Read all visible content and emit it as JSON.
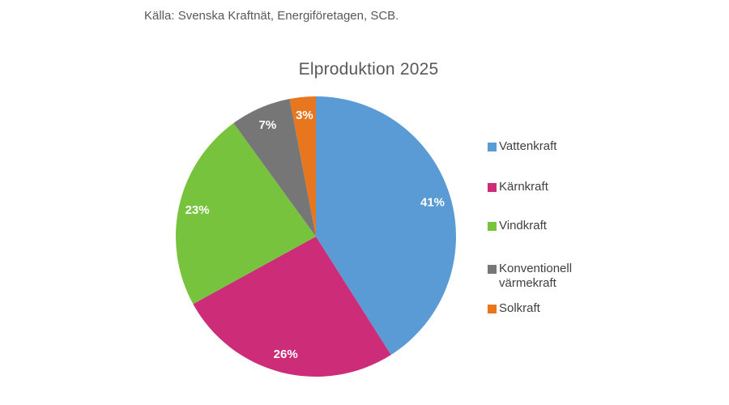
{
  "page": {
    "background": "#FFFFFF",
    "source_line": "Källa: Svenska Kraftnät, Energiföretagen, SCB.",
    "source_color": "#595959",
    "title_color": "#595959"
  },
  "chart_data": {
    "type": "pie",
    "title": "Elproduktion 2025",
    "categories": [
      "Vattenkraft",
      "Kärnkraft",
      "Vindkraft",
      "Konventionell värmekraft",
      "Solkraft"
    ],
    "values": [
      41,
      26,
      23,
      7,
      3
    ],
    "unit": "%",
    "colors": [
      "#5B9BD5",
      "#CC2C78",
      "#77C33D",
      "#767676",
      "#E8761F"
    ],
    "data_label_color": "#FFFFFF",
    "legend_position": "right",
    "legend_text_color": "#3F3F3F",
    "start_angle_deg": 0,
    "direction": "clockwise",
    "grid": false
  }
}
